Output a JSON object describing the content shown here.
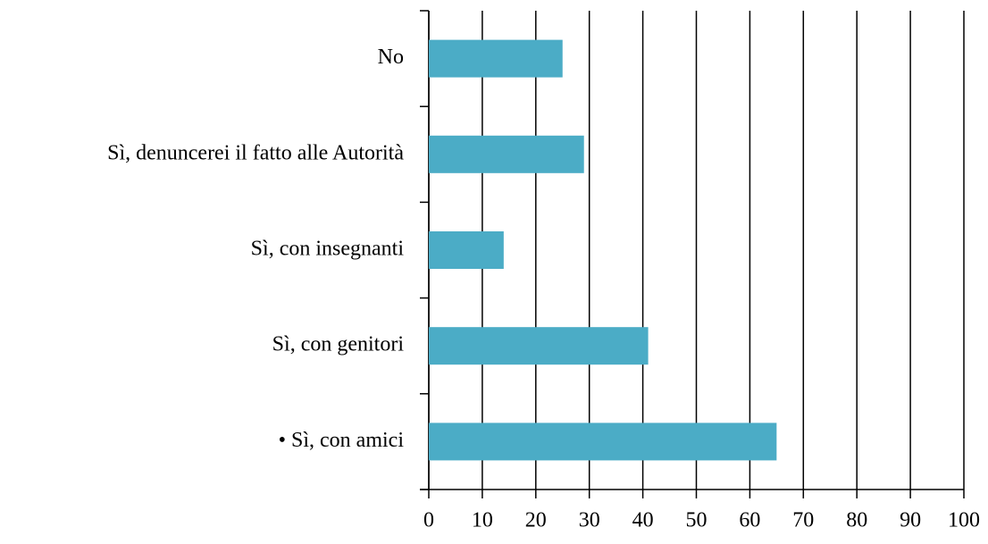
{
  "chart_data": {
    "type": "bar",
    "orientation": "horizontal",
    "categories": [
      "No",
      "Sì, denuncerei il fatto alle Autorità",
      "Sì, con insegnanti",
      "Sì, con genitori",
      "• Sì, con amici"
    ],
    "values": [
      25,
      29,
      14,
      41,
      65
    ],
    "color": "#4bacc6",
    "xlim": [
      0,
      100
    ],
    "xticks": [
      0,
      10,
      20,
      30,
      40,
      50,
      60,
      70,
      80,
      90,
      100
    ],
    "grid": true
  }
}
